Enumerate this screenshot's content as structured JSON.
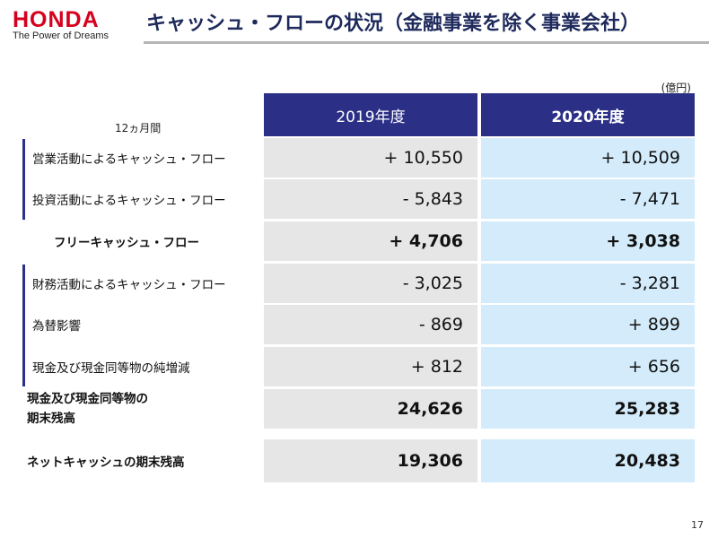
{
  "header": {
    "logo": "HONDA",
    "tagline": "The Power of Dreams",
    "title": "キャッシュ・フローの状況（金融事業を除く事業会社）"
  },
  "unit": "(億円)",
  "table": {
    "period": "12ヵ月間",
    "columns": [
      "2019年度",
      "2020年度"
    ],
    "rows": [
      [
        "営業活動によるキャッシュ・フロー",
        "+ 10,550",
        "+ 10,509"
      ],
      [
        "投資活動によるキャッシュ・フロー",
        "- 5,843",
        "- 7,471"
      ],
      [
        "フリーキャッシュ・フロー",
        "+ 4,706",
        "+ 3,038"
      ],
      [
        "財務活動によるキャッシュ・フロー",
        "- 3,025",
        "- 3,281"
      ],
      [
        "為替影響",
        "- 869",
        "+ 899"
      ],
      [
        "現金及び現金同等物の純増減",
        "+ 812",
        "+ 656"
      ],
      [
        [
          "現金及び現金同等物の",
          "期末残高"
        ],
        "24,626",
        "25,283"
      ],
      [
        "ネットキャッシュの期末残高",
        "19,306",
        "20,483"
      ]
    ]
  },
  "page_number": "17"
}
